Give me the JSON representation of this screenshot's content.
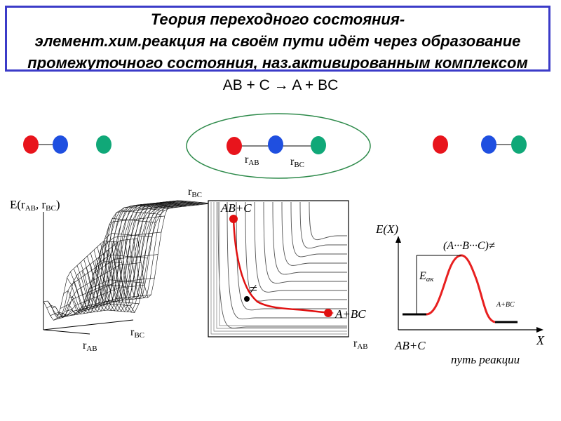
{
  "title": {
    "line1": "Теория переходного состояния-",
    "line2": "элемент.хим.реакция на своём пути идёт через образование",
    "line3": "промежуточного состояния, наз.активированным комплексом"
  },
  "reaction": "AB + C → A + BC",
  "molecules": {
    "r_ab_main": "r",
    "r_ab_sub": "AB",
    "r_bc_main": "r",
    "r_bc_sub": "BC"
  },
  "surface": {
    "energy_label": "E(r",
    "energy_sub1": "AB",
    "energy_sep": ", r",
    "energy_sub2": "BC",
    "energy_close": ")",
    "x_label_main": "r",
    "x_label_sub": "AB",
    "y_label_main": "r",
    "y_label_sub": "BC"
  },
  "contour": {
    "y_axis_main": "r",
    "y_axis_sub": "BC",
    "x_axis_main": "r",
    "x_axis_sub": "AB",
    "start_label": "AB+C",
    "end_label": "A+BC",
    "ts_symbol": "≠"
  },
  "profile": {
    "y_axis_label": "E(X)",
    "x_axis_label": "X",
    "complex_label": "(A···B···C)≠",
    "ea_main": "E",
    "ea_sub": "ак",
    "product_label": "A+BC",
    "reactant_label": "AB+C",
    "path_label": "путь реакции"
  },
  "colors": {
    "atom_a": "#e8141c",
    "atom_b": "#1f4fe0",
    "atom_c": "#10a878",
    "path": "#e01010",
    "title_border": "#3b3bc8"
  }
}
